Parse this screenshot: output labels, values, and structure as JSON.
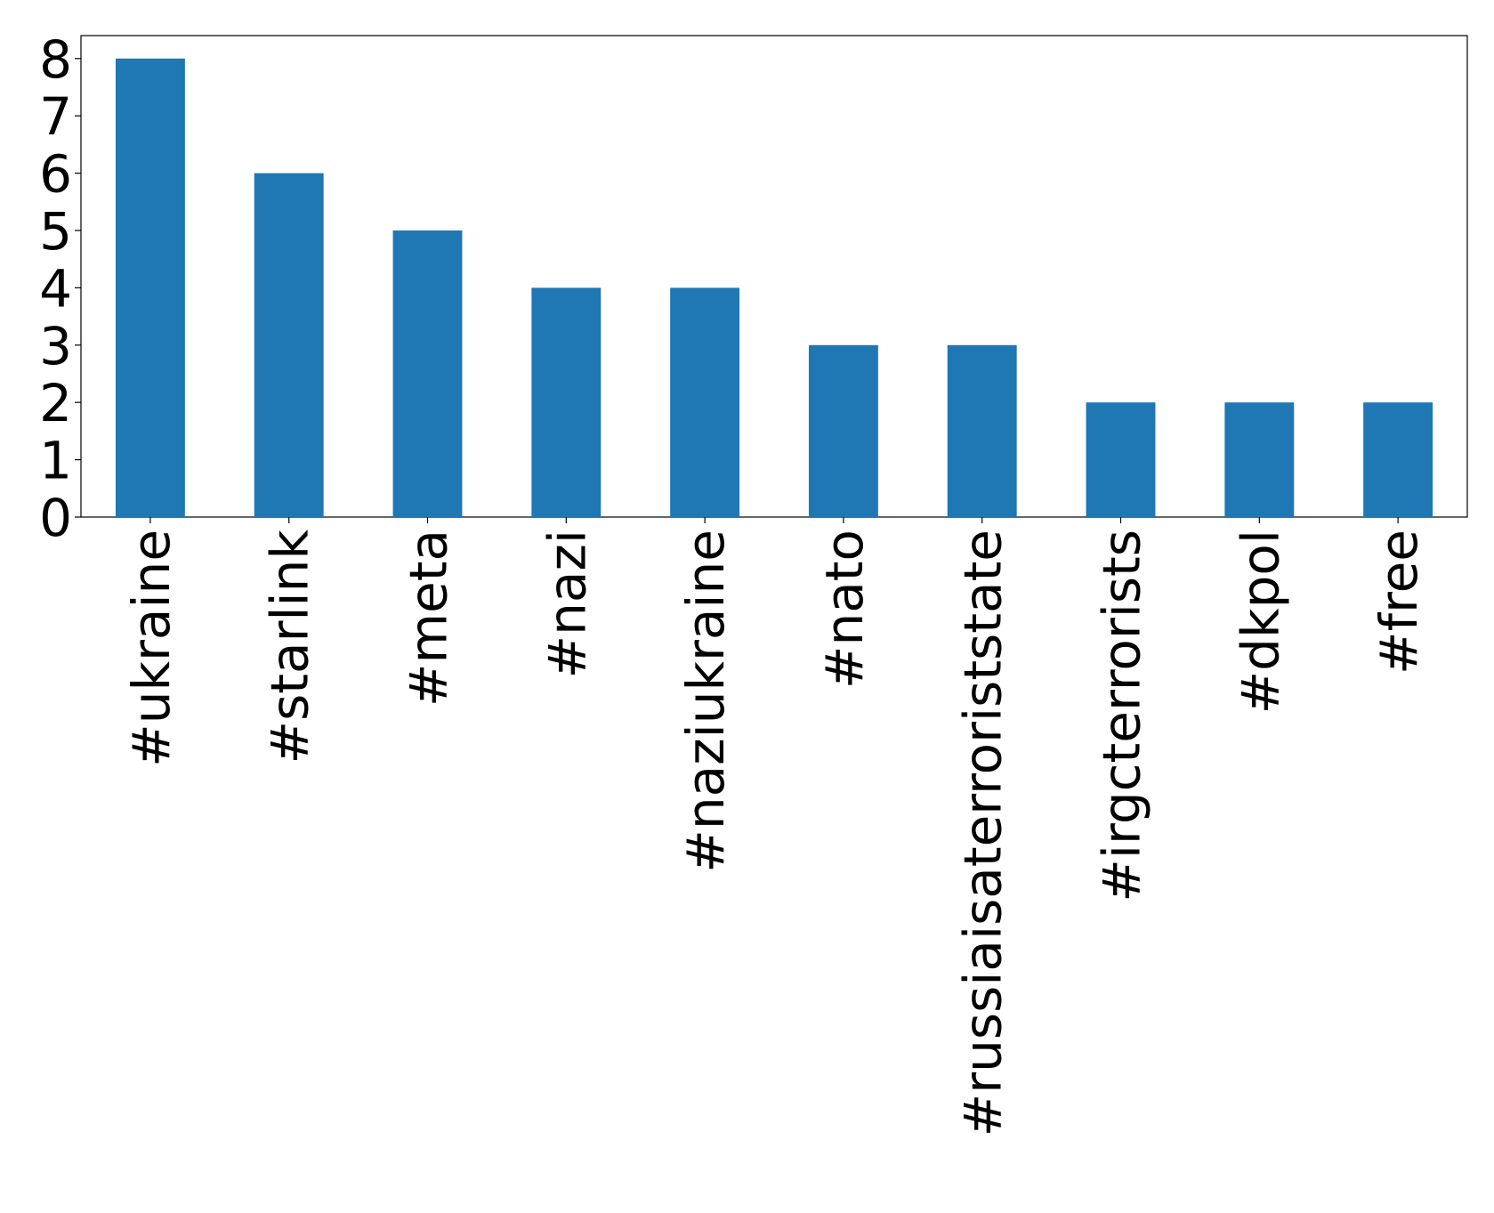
{
  "chart_data": {
    "type": "bar",
    "categories": [
      "#ukraine",
      "#starlink",
      "#meta",
      "#nazi",
      "#naziukraine",
      "#nato",
      "#russiaisaterroriststate",
      "#irgcterrorists",
      "#dkpol",
      "#free"
    ],
    "values": [
      8,
      6,
      5,
      4,
      4,
      3,
      3,
      2,
      2,
      2
    ],
    "color": "#1f77b4",
    "ylim": [
      0,
      8.4
    ],
    "yticks": [
      0,
      1,
      2,
      3,
      4,
      5,
      6,
      7,
      8
    ],
    "grid": false
  }
}
